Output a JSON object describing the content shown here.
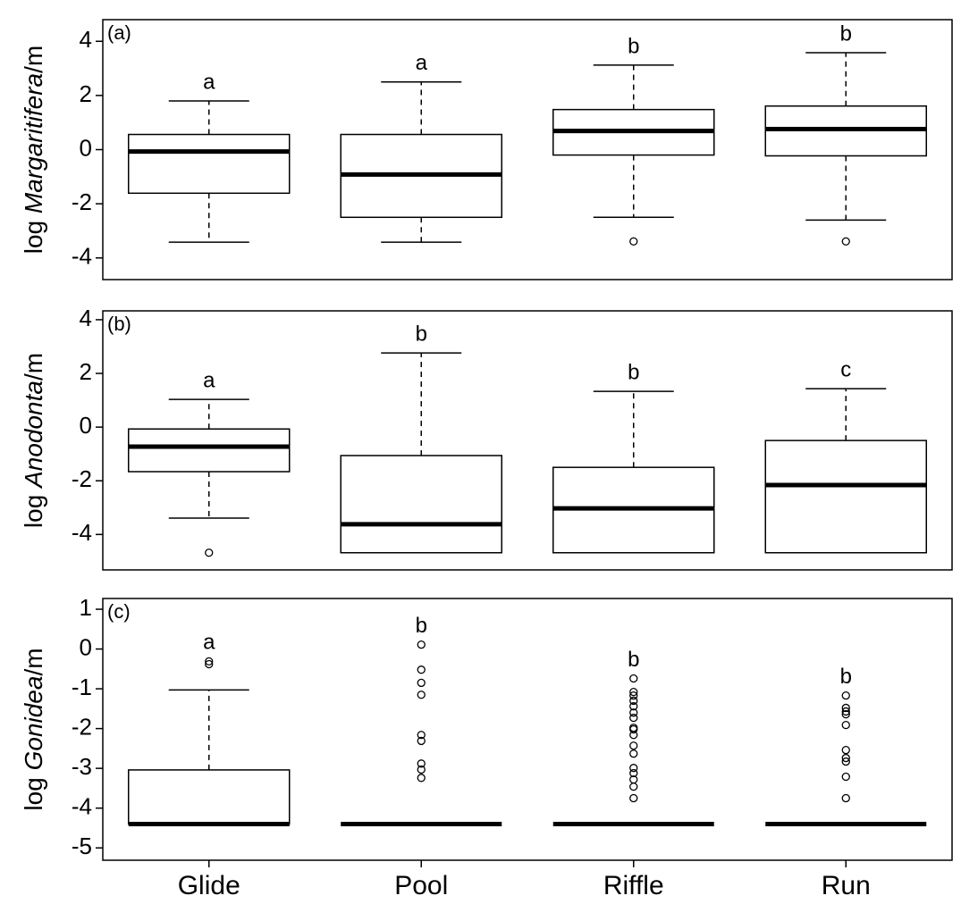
{
  "chart_data": [
    {
      "type": "box",
      "panel_label": "(a)",
      "ylabel": [
        "log ",
        "Margaritifera",
        "/m"
      ],
      "ylim": [
        -4.8,
        4.8
      ],
      "yticks": [
        -4,
        -2,
        0,
        2,
        4
      ],
      "boxes": [
        {
          "letter": "a",
          "whislo": -3.42,
          "q1": -1.61,
          "med": -0.07,
          "q3": 0.56,
          "whishi": 1.8,
          "fliers": []
        },
        {
          "letter": "a",
          "whislo": -3.42,
          "q1": -2.5,
          "med": -0.92,
          "q3": 0.56,
          "whishi": 2.5,
          "fliers": []
        },
        {
          "letter": "b",
          "whislo": -2.5,
          "q1": -0.2,
          "med": 0.69,
          "q3": 1.48,
          "whishi": 3.12,
          "fliers": [
            -3.39
          ]
        },
        {
          "letter": "b",
          "whislo": -2.6,
          "q1": -0.23,
          "med": 0.76,
          "q3": 1.61,
          "whishi": 3.58,
          "fliers": [
            -3.39
          ]
        }
      ]
    },
    {
      "type": "box",
      "panel_label": "(b)",
      "ylabel": [
        "log ",
        "Anodonta",
        "/m"
      ],
      "ylim": [
        -5.32,
        4.33
      ],
      "yticks": [
        -4,
        -2,
        0,
        2,
        4
      ],
      "boxes": [
        {
          "letter": "a",
          "whislo": -3.39,
          "q1": -1.66,
          "med": -0.73,
          "q3": -0.07,
          "whishi": 1.03,
          "fliers": [
            -4.68
          ]
        },
        {
          "letter": "b",
          "whislo": -4.68,
          "q1": -4.68,
          "med": -3.62,
          "q3": -1.06,
          "whishi": 2.76,
          "fliers": []
        },
        {
          "letter": "b",
          "whislo": -4.68,
          "q1": -4.68,
          "med": -3.03,
          "q3": -1.5,
          "whishi": 1.33,
          "fliers": []
        },
        {
          "letter": "c",
          "whislo": -4.68,
          "q1": -4.68,
          "med": -2.16,
          "q3": -0.5,
          "whishi": 1.43,
          "fliers": []
        }
      ]
    },
    {
      "type": "box",
      "panel_label": "(c)",
      "ylabel": [
        "log ",
        "Gonidea",
        "/m"
      ],
      "ylim": [
        -5.31,
        1.27
      ],
      "yticks": [
        -5,
        -4,
        -3,
        -2,
        -1,
        0,
        1
      ],
      "categories": [
        "Glide",
        "Pool",
        "Riffle",
        "Run"
      ],
      "boxes": [
        {
          "letter": "a",
          "whislo": -4.4,
          "q1": -4.4,
          "med": -4.4,
          "q3": -3.04,
          "whishi": -1.03,
          "fliers": [
            -0.31,
            -0.38
          ]
        },
        {
          "letter": "b",
          "whislo": -4.4,
          "q1": -4.4,
          "med": -4.4,
          "q3": -4.4,
          "whishi": -4.4,
          "fliers": [
            0.11,
            -0.52,
            -0.85,
            -1.15,
            -2.16,
            -2.31,
            -2.88,
            -3.03,
            -3.24
          ]
        },
        {
          "letter": "b",
          "whislo": -4.4,
          "q1": -4.4,
          "med": -4.4,
          "q3": -4.4,
          "whishi": -4.4,
          "fliers": [
            -0.74,
            -1.08,
            -1.17,
            -1.3,
            -1.44,
            -1.6,
            -1.73,
            -1.98,
            -2.02,
            -2.16,
            -2.43,
            -2.63,
            -2.99,
            -3.12,
            -3.28,
            -3.46,
            -3.75
          ]
        },
        {
          "letter": "b",
          "whislo": -4.4,
          "q1": -4.4,
          "med": -4.4,
          "q3": -4.4,
          "whishi": -4.4,
          "fliers": [
            -1.17,
            -1.48,
            -1.57,
            -1.64,
            -1.91,
            -2.54,
            -2.74,
            -2.83,
            -3.21,
            -3.75
          ]
        }
      ]
    }
  ]
}
